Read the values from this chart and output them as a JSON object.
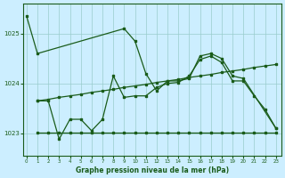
{
  "title": "Graphe pression niveau de la mer (hPa)",
  "bg_color": "#cceeff",
  "grid_color": "#99cccc",
  "line_color": "#1a5c1a",
  "x_ticks": [
    0,
    1,
    2,
    3,
    4,
    5,
    6,
    7,
    8,
    9,
    10,
    11,
    12,
    13,
    14,
    15,
    16,
    17,
    18,
    19,
    20,
    21,
    22,
    23
  ],
  "y_ticks": [
    1023,
    1024,
    1025
  ],
  "ylim": [
    1022.55,
    1025.6
  ],
  "xlim": [
    -0.3,
    23.5
  ],
  "series1_x": [
    0,
    1,
    9,
    10,
    11,
    12,
    13,
    14,
    15,
    16,
    17,
    18,
    19,
    20,
    23
  ],
  "series1_y": [
    1025.35,
    1024.6,
    1025.1,
    1024.85,
    1024.2,
    1023.85,
    1024.05,
    1024.05,
    1024.1,
    1024.55,
    1024.6,
    1024.5,
    1024.15,
    1024.1,
    1023.1
  ],
  "series2_x": [
    1,
    2,
    3,
    4,
    5,
    6,
    7,
    8,
    9,
    10,
    11,
    12,
    13,
    14,
    15,
    16,
    17,
    18,
    19,
    20,
    21,
    22,
    23
  ],
  "series2_y": [
    1023.65,
    1023.68,
    1023.72,
    1023.75,
    1023.78,
    1023.82,
    1023.85,
    1023.88,
    1023.92,
    1023.95,
    1023.98,
    1024.02,
    1024.05,
    1024.08,
    1024.12,
    1024.15,
    1024.18,
    1024.22,
    1024.25,
    1024.28,
    1024.32,
    1024.35,
    1024.38
  ],
  "series3_x": [
    1,
    2,
    3,
    4,
    5,
    6,
    7,
    8,
    9,
    10,
    11,
    12,
    13,
    14,
    15,
    16,
    17,
    18,
    19,
    20,
    21,
    22,
    23
  ],
  "series3_y": [
    1023.65,
    1023.65,
    1022.88,
    1023.28,
    1023.28,
    1023.05,
    1023.28,
    1024.15,
    1023.72,
    1023.75,
    1023.75,
    1023.92,
    1024.0,
    1024.02,
    1024.15,
    1024.48,
    1024.55,
    1024.42,
    1024.05,
    1024.05,
    1023.75,
    1023.48,
    1023.1
  ],
  "series4_x": [
    1,
    2,
    3,
    4,
    5,
    6,
    7,
    8,
    9,
    10,
    11,
    12,
    13,
    14,
    15,
    16,
    17,
    18,
    19,
    20,
    21,
    22,
    23
  ],
  "series4_y": [
    1023.02,
    1023.02,
    1023.02,
    1023.02,
    1023.02,
    1023.02,
    1023.02,
    1023.02,
    1023.02,
    1023.02,
    1023.02,
    1023.02,
    1023.02,
    1023.02,
    1023.02,
    1023.02,
    1023.02,
    1023.02,
    1023.02,
    1023.02,
    1023.02,
    1023.02,
    1023.02
  ]
}
